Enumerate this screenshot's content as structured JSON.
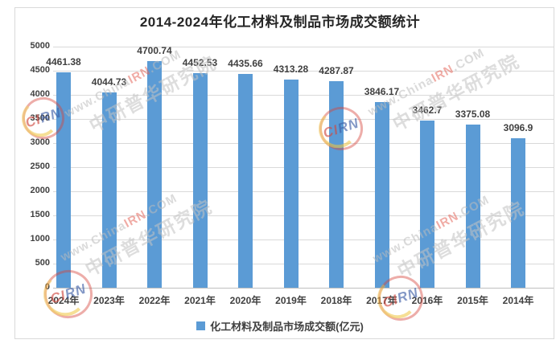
{
  "chart_data": {
    "type": "bar",
    "title": "2014-2024年化工材料及制品市场成交额统计",
    "categories": [
      "2024年",
      "2023年",
      "2022年",
      "2021年",
      "2020年",
      "2019年",
      "2018年",
      "2017年",
      "2016年",
      "2015年",
      "2014年"
    ],
    "values": [
      4461.38,
      4044.73,
      4700.74,
      4452.53,
      4435.66,
      4313.28,
      4287.87,
      3846.17,
      3462.7,
      3375.08,
      3096.9
    ],
    "value_labels": [
      "4461.38",
      "4044.73",
      "4700.74",
      "4452.53",
      "4435.66",
      "4313.28",
      "4287.87",
      "3846.17",
      "3462.7",
      "3375.08",
      "3096.9"
    ],
    "series_name": "化工材料及制品市场成交额(亿元)",
    "xlabel": "",
    "ylabel": "",
    "ylim": [
      0,
      5000
    ],
    "ytick_interval": 500,
    "yticks": [
      "0",
      "500",
      "1000",
      "1500",
      "2000",
      "2500",
      "3000",
      "3500",
      "4000",
      "4500",
      "5000"
    ],
    "grid": true,
    "legend_position": "bottom",
    "bar_color": "#5B9BD5"
  },
  "legend": {
    "label": "化工材料及制品市场成交额(亿元)",
    "marker_color": "#5B9BD5"
  },
  "watermark": {
    "line1_prefix": "www.China",
    "line1_highlight": "IRN",
    "line1_suffix": ".COM",
    "line2": "中研普华研究院",
    "stamp_text": "CIRN"
  },
  "colors": {
    "bar": "#5B9BD5",
    "gridline": "#D9D9D9",
    "axis_line": "#BFBFBF",
    "text": "#404040",
    "title": "#262626",
    "watermark_gray": "#BDBDBD",
    "watermark_red": "#E4685C"
  }
}
